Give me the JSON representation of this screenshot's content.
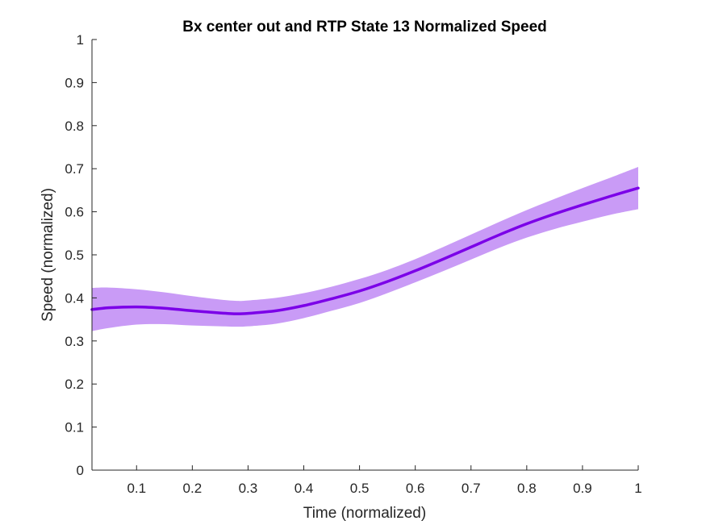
{
  "chart_data": {
    "type": "line",
    "title": "Bx  center out and RTP State 13 Normalized Speed",
    "xlabel": "Time (normalized)",
    "ylabel": "Speed (normalized)",
    "xlim": [
      0.02,
      1.0
    ],
    "ylim": [
      0,
      1
    ],
    "xticks": [
      0.1,
      0.2,
      0.3,
      0.4,
      0.5,
      0.6,
      0.7,
      0.8,
      0.9,
      1
    ],
    "xtick_labels": [
      "0.1",
      "0.2",
      "0.3",
      "0.4",
      "0.5",
      "0.6",
      "0.7",
      "0.8",
      "0.9",
      "1"
    ],
    "yticks": [
      0,
      0.1,
      0.2,
      0.3,
      0.4,
      0.5,
      0.6,
      0.7,
      0.8,
      0.9,
      1
    ],
    "ytick_labels": [
      "0",
      "0.1",
      "0.2",
      "0.3",
      "0.4",
      "0.5",
      "0.6",
      "0.7",
      "0.8",
      "0.9",
      "1"
    ],
    "grid": false,
    "series": [
      {
        "x": [
          0.02,
          0.05,
          0.1,
          0.15,
          0.2,
          0.25,
          0.28,
          0.3,
          0.35,
          0.4,
          0.45,
          0.5,
          0.55,
          0.6,
          0.65,
          0.7,
          0.75,
          0.8,
          0.85,
          0.9,
          0.95,
          1.0
        ],
        "values": [
          0.373,
          0.377,
          0.379,
          0.376,
          0.37,
          0.365,
          0.363,
          0.364,
          0.37,
          0.382,
          0.398,
          0.416,
          0.438,
          0.463,
          0.49,
          0.518,
          0.546,
          0.572,
          0.595,
          0.616,
          0.636,
          0.655
        ],
        "upper": [
          0.423,
          0.424,
          0.42,
          0.413,
          0.404,
          0.396,
          0.393,
          0.394,
          0.4,
          0.411,
          0.426,
          0.444,
          0.465,
          0.49,
          0.518,
          0.547,
          0.576,
          0.604,
          0.63,
          0.655,
          0.679,
          0.704
        ],
        "lower": [
          0.323,
          0.33,
          0.338,
          0.339,
          0.336,
          0.334,
          0.333,
          0.334,
          0.34,
          0.353,
          0.37,
          0.388,
          0.411,
          0.436,
          0.462,
          0.489,
          0.516,
          0.54,
          0.56,
          0.577,
          0.593,
          0.606
        ],
        "line_color": "#7B00E8",
        "band_color": "#C99BF6"
      }
    ]
  }
}
